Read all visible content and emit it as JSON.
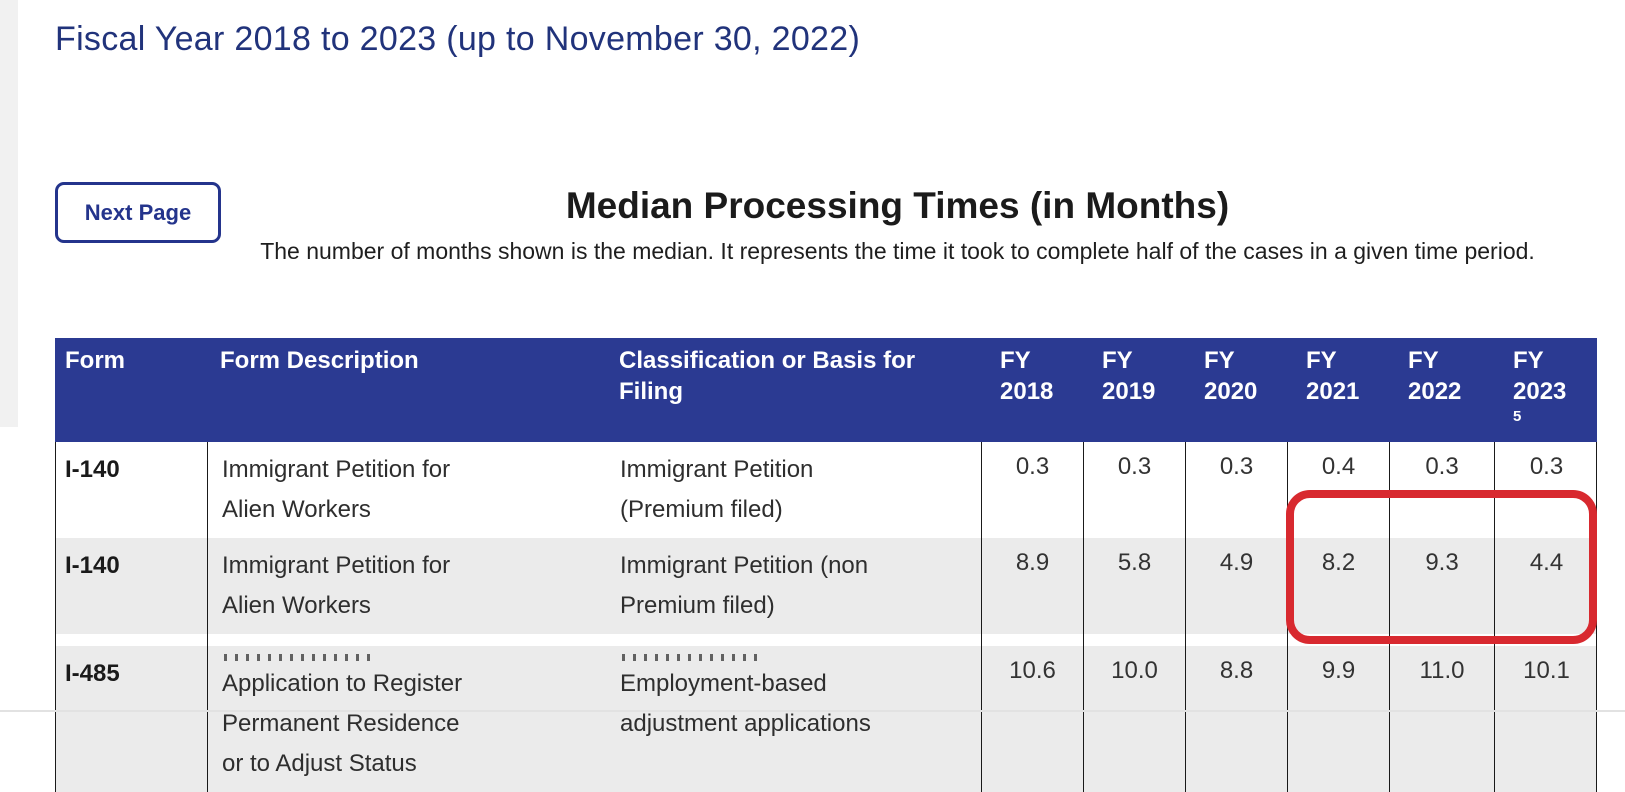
{
  "page": {
    "title": "Fiscal Year 2018 to 2023 (up to November 30, 2022)",
    "next_page_label": "Next Page",
    "heading": "Median Processing Times (in Months)",
    "subtitle": "The number of months shown is the median. It represents the time it took to complete half of the cases in a given time period."
  },
  "colors": {
    "title_blue": "#21337b",
    "button_blue": "#24348c",
    "table_header_bg": "#2b3a92",
    "table_header_text": "#ffffff",
    "row_alt_bg": "#ebebeb",
    "grid_line": "#1a1a1a",
    "annotation_red": "#d8292f",
    "left_gutter_gray": "#f1f1f1"
  },
  "table": {
    "columns_main": [
      "Form",
      "Form Description",
      "Classification or Basis for Filing"
    ],
    "fy_columns": [
      {
        "label": "FY",
        "year": "2018",
        "sup": ""
      },
      {
        "label": "FY",
        "year": "2019",
        "sup": ""
      },
      {
        "label": "FY",
        "year": "2020",
        "sup": ""
      },
      {
        "label": "FY",
        "year": "2021",
        "sup": ""
      },
      {
        "label": "FY",
        "year": "2022",
        "sup": ""
      },
      {
        "label": "FY",
        "year": "2023",
        "sup": "5"
      }
    ],
    "rows": [
      {
        "form": "I-140",
        "description": "Immigrant Petition for Alien Workers",
        "classification": "Immigrant Petition (Premium filed)",
        "values": [
          "0.3",
          "0.3",
          "0.3",
          "0.4",
          "0.3",
          "0.3"
        ]
      },
      {
        "form": "I-140",
        "description": "Immigrant Petition for Alien Workers",
        "classification": "Immigrant Petition (non Premium filed)",
        "values": [
          "8.9",
          "5.8",
          "4.9",
          "8.2",
          "9.3",
          "4.4"
        ]
      },
      {
        "form": "I-485",
        "description": "Application to Register Permanent Residence or to Adjust Status",
        "classification": "Employment-based adjustment applications",
        "values": [
          "10.6",
          "10.0",
          "8.8",
          "9.9",
          "11.0",
          "10.1"
        ]
      }
    ]
  },
  "annotation": {
    "shape": "red-rounded-box",
    "covers": "FY 2021, FY 2022 and FY 2023 values of the I-140 (non Premium filed) and I-485 rows"
  }
}
